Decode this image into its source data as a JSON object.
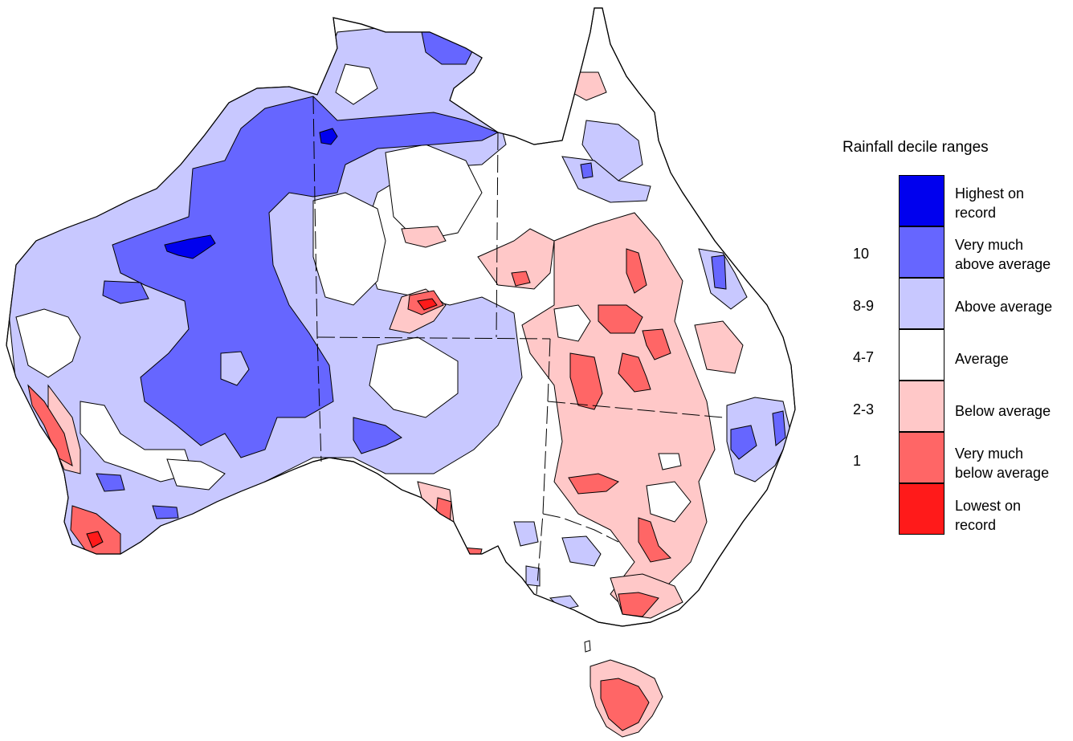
{
  "legend": {
    "title": "Rainfall decile ranges",
    "categories": [
      {
        "label": "Highest on\nrecord",
        "range": "",
        "color": "#0000ee"
      },
      {
        "label": "Very much\nabove average",
        "range": "10",
        "color": "#6666ff"
      },
      {
        "label": "Above average",
        "range": "8-9",
        "color": "#c8c8ff"
      },
      {
        "label": "Average",
        "range": "4-7",
        "color": "#ffffff"
      },
      {
        "label": "Below average",
        "range": "2-3",
        "color": "#ffc8c8"
      },
      {
        "label": "Very much\nbelow average",
        "range": "1",
        "color": "#ff6666"
      },
      {
        "label": "Lowest on\nrecord",
        "range": "",
        "color": "#ff1a1a"
      }
    ]
  },
  "colors": {
    "highest": "#0000ee",
    "very_much_above": "#6666ff",
    "above": "#c8c8ff",
    "average": "#ffffff",
    "below": "#ffc8c8",
    "very_much_below": "#ff6666",
    "lowest": "#ff1a1a"
  }
}
